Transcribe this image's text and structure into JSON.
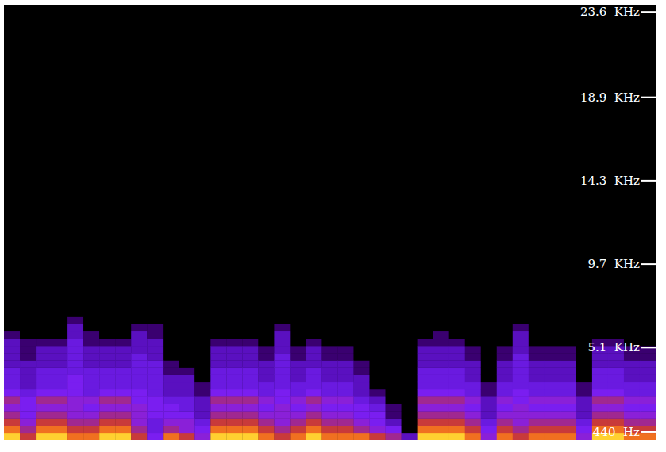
{
  "chart_data": {
    "type": "spectrogram",
    "tick_labels": "y",
    "ylim": [
      0,
      24000
    ],
    "yticks": [
      {
        "value": 440,
        "label": "440  Hz"
      },
      {
        "value": 5100,
        "label": "5.1  KHz"
      },
      {
        "value": 9700,
        "label": "9.7  KHz"
      },
      {
        "value": 14300,
        "label": "14.3  KHz"
      },
      {
        "value": 18900,
        "label": "18.9  KHz"
      },
      {
        "value": 23600,
        "label": "23.6  KHz"
      }
    ],
    "freq_bins": [
      0,
      400,
      800,
      1200,
      1600,
      2000,
      2400,
      2800,
      3200,
      3600,
      4000,
      4400,
      4800,
      5200,
      5600,
      6000,
      6400,
      6800,
      7200
    ],
    "zlim": [
      0,
      9
    ],
    "cells": [
      [
        9,
        8,
        7,
        6,
        5,
        6,
        4,
        3,
        3,
        3,
        2,
        2,
        2,
        2,
        1,
        0,
        0,
        0
      ],
      [
        7,
        6,
        5,
        4,
        4,
        4,
        3,
        2,
        2,
        2,
        2,
        1,
        1,
        1,
        0,
        0,
        0,
        0
      ],
      [
        9,
        8,
        7,
        6,
        5,
        6,
        4,
        3,
        3,
        3,
        2,
        2,
        2,
        1,
        0,
        0,
        0,
        0
      ],
      [
        9,
        8,
        7,
        6,
        5,
        6,
        4,
        3,
        3,
        3,
        2,
        2,
        2,
        1,
        0,
        0,
        0,
        0
      ],
      [
        8,
        7,
        6,
        5,
        5,
        5,
        4,
        4,
        4,
        3,
        3,
        3,
        3,
        3,
        2,
        2,
        1,
        0
      ],
      [
        8,
        7,
        6,
        5,
        4,
        5,
        3,
        3,
        3,
        3,
        2,
        2,
        2,
        1,
        1,
        0,
        0,
        0
      ],
      [
        9,
        8,
        7,
        6,
        5,
        6,
        4,
        3,
        3,
        3,
        2,
        2,
        2,
        1,
        0,
        0,
        0,
        0
      ],
      [
        9,
        8,
        7,
        6,
        5,
        6,
        4,
        3,
        3,
        3,
        2,
        2,
        2,
        1,
        0,
        0,
        0,
        0
      ],
      [
        7,
        6,
        5,
        5,
        5,
        4,
        4,
        3,
        3,
        3,
        3,
        3,
        2,
        2,
        2,
        1,
        0,
        0
      ],
      [
        4,
        3,
        3,
        4,
        4,
        4,
        3,
        3,
        3,
        3,
        3,
        2,
        2,
        2,
        1,
        1,
        0,
        0
      ],
      [
        8,
        6,
        5,
        4,
        4,
        3,
        2,
        2,
        2,
        1,
        1,
        0,
        0,
        0,
        0,
        0,
        0,
        0
      ],
      [
        7,
        5,
        5,
        4,
        3,
        3,
        2,
        2,
        2,
        1,
        0,
        0,
        0,
        0,
        0,
        0,
        0,
        0
      ],
      [
        5,
        4,
        3,
        2,
        2,
        2,
        1,
        1,
        0,
        0,
        0,
        0,
        0,
        0,
        0,
        0,
        0,
        0
      ],
      [
        9,
        8,
        7,
        6,
        5,
        6,
        4,
        3,
        3,
        3,
        2,
        2,
        2,
        1,
        0,
        0,
        0,
        0
      ],
      [
        9,
        8,
        7,
        6,
        5,
        6,
        4,
        3,
        3,
        3,
        2,
        2,
        2,
        1,
        0,
        0,
        0,
        0
      ],
      [
        9,
        8,
        7,
        6,
        5,
        6,
        4,
        3,
        3,
        3,
        2,
        2,
        2,
        1,
        0,
        0,
        0,
        0
      ],
      [
        8,
        7,
        6,
        5,
        4,
        5,
        3,
        3,
        2,
        2,
        2,
        1,
        1,
        0,
        0,
        0,
        0,
        0
      ],
      [
        7,
        6,
        5,
        5,
        5,
        4,
        4,
        3,
        3,
        3,
        3,
        3,
        2,
        2,
        2,
        1,
        0,
        0
      ],
      [
        8,
        7,
        6,
        5,
        4,
        5,
        3,
        3,
        2,
        2,
        2,
        1,
        1,
        0,
        0,
        0,
        0,
        0
      ],
      [
        9,
        8,
        7,
        6,
        5,
        6,
        4,
        3,
        3,
        3,
        2,
        2,
        2,
        1,
        0,
        0,
        0,
        0
      ],
      [
        8,
        7,
        6,
        5,
        4,
        5,
        3,
        3,
        2,
        2,
        2,
        1,
        1,
        0,
        0,
        0,
        0,
        0
      ],
      [
        8,
        7,
        6,
        5,
        4,
        5,
        3,
        3,
        2,
        2,
        2,
        1,
        1,
        0,
        0,
        0,
        0,
        0
      ],
      [
        8,
        6,
        5,
        4,
        4,
        3,
        2,
        2,
        2,
        1,
        1,
        0,
        0,
        0,
        0,
        0,
        0,
        0
      ],
      [
        7,
        5,
        4,
        4,
        3,
        2,
        1,
        0,
        0,
        0,
        0,
        0,
        0,
        0,
        0,
        0,
        0,
        0
      ],
      [
        6,
        4,
        2,
        1,
        1,
        0,
        0,
        0,
        0,
        0,
        0,
        0,
        0,
        0,
        0,
        0,
        0,
        0
      ],
      [
        2,
        0,
        0,
        0,
        0,
        0,
        0,
        0,
        0,
        0,
        0,
        0,
        0,
        0,
        0,
        0,
        0,
        0
      ],
      [
        9,
        8,
        7,
        6,
        5,
        6,
        4,
        3,
        3,
        3,
        2,
        2,
        2,
        1,
        0,
        0,
        0,
        0
      ],
      [
        9,
        8,
        7,
        6,
        5,
        6,
        4,
        3,
        3,
        3,
        2,
        2,
        2,
        1,
        1,
        0,
        0,
        0
      ],
      [
        9,
        8,
        7,
        6,
        5,
        6,
        4,
        3,
        3,
        3,
        2,
        2,
        2,
        1,
        0,
        0,
        0,
        0
      ],
      [
        8,
        7,
        6,
        5,
        4,
        5,
        3,
        3,
        2,
        2,
        2,
        1,
        1,
        0,
        0,
        0,
        0,
        0
      ],
      [
        5,
        4,
        3,
        2,
        2,
        2,
        1,
        1,
        0,
        0,
        0,
        0,
        0,
        0,
        0,
        0,
        0,
        0
      ],
      [
        8,
        7,
        6,
        5,
        4,
        5,
        3,
        3,
        2,
        2,
        2,
        1,
        1,
        0,
        0,
        0,
        0,
        0
      ],
      [
        7,
        6,
        5,
        5,
        5,
        4,
        4,
        3,
        3,
        3,
        3,
        3,
        2,
        2,
        2,
        1,
        0,
        0
      ],
      [
        8,
        7,
        6,
        5,
        4,
        5,
        3,
        3,
        2,
        2,
        2,
        1,
        1,
        0,
        0,
        0,
        0,
        0
      ],
      [
        8,
        7,
        6,
        5,
        4,
        5,
        3,
        3,
        2,
        2,
        2,
        1,
        1,
        0,
        0,
        0,
        0,
        0
      ],
      [
        8,
        7,
        6,
        5,
        4,
        5,
        3,
        3,
        2,
        2,
        2,
        1,
        1,
        0,
        0,
        0,
        0,
        0
      ],
      [
        5,
        4,
        3,
        2,
        2,
        2,
        1,
        1,
        0,
        0,
        0,
        0,
        0,
        0,
        0,
        0,
        0,
        0
      ],
      [
        9,
        8,
        7,
        6,
        5,
        6,
        4,
        3,
        3,
        3,
        2,
        2,
        2,
        1,
        0,
        0,
        0,
        0
      ],
      [
        9,
        8,
        7,
        6,
        5,
        6,
        4,
        3,
        3,
        3,
        2,
        2,
        2,
        1,
        0,
        0,
        0,
        0
      ],
      [
        8,
        7,
        6,
        5,
        4,
        5,
        3,
        3,
        2,
        2,
        2,
        1,
        1,
        0,
        0,
        0,
        0,
        0
      ],
      [
        8,
        7,
        6,
        5,
        4,
        5,
        3,
        3,
        2,
        2,
        2,
        1,
        1,
        0,
        0,
        0,
        0,
        0
      ]
    ]
  }
}
